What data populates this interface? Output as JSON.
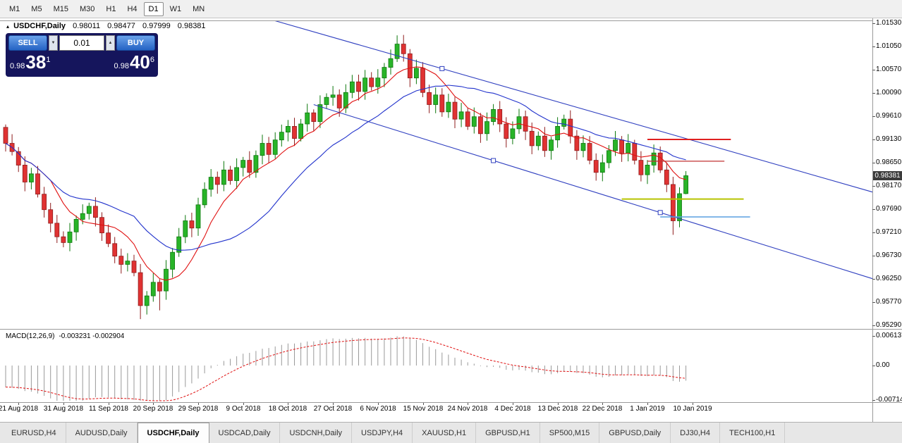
{
  "toolbar": {
    "timeframes": [
      "M1",
      "M5",
      "M15",
      "M30",
      "H1",
      "H4",
      "D1",
      "W1",
      "MN"
    ],
    "active_timeframe": "D1"
  },
  "icons": {
    "chart_marker": "▴",
    "spinner_up": "▲",
    "spinner_down": "▼"
  },
  "chart": {
    "symbol_label": "USDCHF,Daily",
    "ohlc": {
      "open": "0.98011",
      "high": "0.98477",
      "low": "0.97999",
      "close": "0.98381"
    },
    "trade_widget": {
      "sell_label": "SELL",
      "buy_label": "BUY",
      "volume": "0.01",
      "sell_price": {
        "prefix": "0.98",
        "big": "38",
        "sup": "1"
      },
      "buy_price": {
        "prefix": "0.98",
        "big": "40",
        "sup": "6"
      }
    },
    "price_axis": {
      "labels": [
        "1.01530",
        "1.01050",
        "1.00570",
        "1.00090",
        "0.99610",
        "0.99130",
        "0.98650",
        "0.98170",
        "0.97690",
        "0.97210",
        "0.96730",
        "0.96250",
        "0.95770",
        "0.95290"
      ],
      "current_price": "0.98381"
    },
    "date_axis": {
      "labels": [
        "21 Aug 2018",
        "31 Aug 2018",
        "11 Sep 2018",
        "20 Sep 2018",
        "29 Sep 2018",
        "9 Oct 2018",
        "18 Oct 2018",
        "27 Oct 2018",
        "6 Nov 2018",
        "15 Nov 2018",
        "24 Nov 2018",
        "4 Dec 2018",
        "13 Dec 2018",
        "22 Dec 2018",
        "1 Jan 2019",
        "10 Jan 2019"
      ]
    },
    "macd": {
      "label": "MACD(12,26,9)",
      "values": "-0.003231 -0.002904",
      "axis_labels": [
        "0.006137",
        "0.00",
        "-0.007142"
      ]
    }
  },
  "chart_data": {
    "type": "candlestick",
    "symbol": "USDCHF",
    "timeframe": "Daily",
    "price_axis_range": [
      0.9529,
      1.0153
    ],
    "first_open": 0.9938,
    "closes": [
      0.9905,
      0.9888,
      0.986,
      0.9825,
      0.9842,
      0.98,
      0.9768,
      0.974,
      0.9712,
      0.97,
      0.9722,
      0.9748,
      0.976,
      0.9775,
      0.9752,
      0.972,
      0.9698,
      0.9672,
      0.9655,
      0.9662,
      0.9638,
      0.957,
      0.959,
      0.9618,
      0.96,
      0.9645,
      0.968,
      0.9712,
      0.9745,
      0.973,
      0.9778,
      0.981,
      0.9835,
      0.982,
      0.985,
      0.9828,
      0.9855,
      0.987,
      0.9845,
      0.988,
      0.9905,
      0.9882,
      0.9912,
      0.9928,
      0.994,
      0.9915,
      0.9945,
      0.9968,
      0.995,
      0.9985,
      1.0,
      1.0005,
      0.9978,
      1.001,
      1.0032,
      1.0012,
      1.004,
      1.0022,
      1.004,
      1.0062,
      1.008,
      1.011,
      1.009,
      1.004,
      1.006,
      1.001,
      0.9985,
      1.0005,
      0.997,
      0.999,
      0.9955,
      0.997,
      0.994,
      0.996,
      0.9925,
      0.995,
      0.9975,
      0.9945,
      0.9915,
      0.9935,
      0.996,
      0.993,
      0.99,
      0.992,
      0.989,
      0.9912,
      0.994,
      0.9955,
      0.992,
      0.989,
      0.9905,
      0.987,
      0.9845,
      0.9865,
      0.989,
      0.9912,
      0.9885,
      0.9905,
      0.987,
      0.984,
      0.986,
      0.9885,
      0.985,
      0.982,
      0.9745,
      0.9801,
      0.98381
    ],
    "high_overrides": {
      "61": 1.0128
    },
    "low_overrides": {
      "21": 0.9542,
      "24": 0.956,
      "104": 0.9716
    },
    "last_candle": {
      "open": 0.98011,
      "high": 0.98477,
      "low": 0.97999,
      "close": 0.98381
    },
    "date_label_indices": [
      2,
      9,
      16,
      23,
      30,
      37,
      44,
      51,
      58,
      65,
      72,
      79,
      86,
      93,
      100,
      107
    ],
    "moving_averages": [
      {
        "name": "fast-ma",
        "period": 8,
        "color": "#e01010"
      },
      {
        "name": "slow-ma",
        "period": 21,
        "color": "#2233cc"
      }
    ],
    "trendlines": [
      {
        "i1": 40,
        "p1": 1.01657,
        "i2": 136,
        "p2": 0.98009,
        "markers": [
          68
        ]
      },
      {
        "i1": 48,
        "p1": 0.9985,
        "i2": 136,
        "p2": 0.96216,
        "markers": [
          76,
          102
        ]
      }
    ],
    "hlines": [
      {
        "price": 0.9913,
        "i1": 100,
        "i2": 113,
        "color": "#e02020",
        "width": 2
      },
      {
        "price": 0.9868,
        "i1": 100,
        "i2": 112,
        "color": "#c03030",
        "width": 1.2
      },
      {
        "price": 0.979,
        "i1": 96,
        "i2": 115,
        "color": "#b8c400",
        "width": 2
      },
      {
        "price": 0.9753,
        "i1": 102,
        "i2": 116,
        "color": "#5a9fe0",
        "width": 1.6
      }
    ],
    "macd_settings": {
      "fast": 12,
      "slow": 26,
      "signal_period": 9
    },
    "colors": {
      "up": "#28b428",
      "up_edge": "#0e780e",
      "down": "#e03232",
      "down_edge": "#8f1d1d",
      "trendline": "#3040c0",
      "hist": "#9a9a9a",
      "signal": "#e01010"
    }
  },
  "tab_bar": {
    "tabs": [
      "EURUSD,H4",
      "AUDUSD,Daily",
      "USDCHF,Daily",
      "USDCAD,Daily",
      "USDCNH,Daily",
      "USDJPY,H4",
      "XAUUSD,H1",
      "GBPUSD,H1",
      "SP500,M15",
      "GBPUSD,Daily",
      "DJ30,H4",
      "TECH100,H1"
    ],
    "active_tab": "USDCHF,Daily"
  }
}
